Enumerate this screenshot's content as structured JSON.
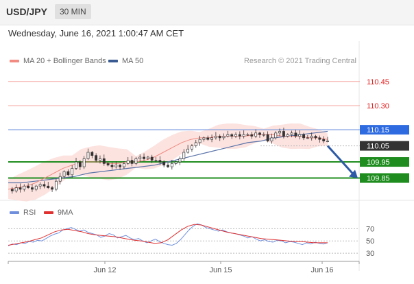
{
  "header": {
    "symbol": "USD/JPY",
    "timeframe": "30 MIN"
  },
  "datetime": "Wednesday, June 16, 2021 1:00:47 AM CET",
  "legend": {
    "main": [
      {
        "label": "MA 20 + Bollinger Bands",
        "color": "#f28b82"
      },
      {
        "label": "MA 50",
        "color": "#3a5a92"
      }
    ],
    "rsi": [
      {
        "label": "RSI",
        "color": "#6f8fdc"
      },
      {
        "label": "9MA",
        "color": "#e03030"
      }
    ]
  },
  "credit": "Research © 2021 Trading Central",
  "chart_data": [
    {
      "type": "candlestick",
      "ylim": [
        109.72,
        110.53
      ],
      "x_ticks": [
        "Jun 12",
        "Jun 15",
        "Jun 16"
      ],
      "price_levels": [
        {
          "value": 110.45,
          "label": "110.45",
          "kind": "resistance"
        },
        {
          "value": 110.3,
          "label": "110.30",
          "kind": "resistance"
        },
        {
          "value": 110.15,
          "label": "110.15",
          "kind": "pivot"
        },
        {
          "value": 110.05,
          "label": "110.05",
          "kind": "current"
        },
        {
          "value": 109.95,
          "label": "109.95",
          "kind": "target"
        },
        {
          "value": 109.85,
          "label": "109.85",
          "kind": "target"
        }
      ],
      "close_path": [
        109.78,
        109.77,
        109.79,
        109.78,
        109.8,
        109.79,
        109.78,
        109.8,
        109.81,
        109.8,
        109.79,
        109.78,
        109.83,
        109.86,
        109.89,
        109.87,
        109.91,
        109.95,
        109.92,
        109.97,
        110.01,
        109.99,
        109.96,
        109.97,
        109.94,
        109.93,
        109.92,
        109.93,
        109.92,
        109.94,
        109.96,
        109.94,
        109.97,
        109.98,
        109.97,
        109.98,
        109.96,
        109.96,
        109.95,
        109.93,
        109.92,
        109.94,
        109.95,
        109.97,
        110.01,
        110.03,
        110.05,
        110.07,
        110.09,
        110.1,
        110.09,
        110.1,
        110.11,
        110.1,
        110.11,
        110.12,
        110.11,
        110.12,
        110.11,
        110.12,
        110.12,
        110.11,
        110.13,
        110.12,
        110.12,
        110.08,
        110.1,
        110.13,
        110.14,
        110.11,
        110.12,
        110.13,
        110.11,
        110.12,
        110.1,
        110.1,
        110.11,
        110.1,
        110.09,
        110.08,
        110.08
      ],
      "ma20_path": [
        109.78,
        109.79,
        109.8,
        109.82,
        109.85,
        109.88,
        109.91,
        109.93,
        109.95,
        109.95,
        109.95,
        109.94,
        109.94,
        109.95,
        109.95,
        109.96,
        109.98,
        110.01,
        110.04,
        110.07,
        110.09,
        110.1,
        110.1,
        110.11,
        110.11,
        110.11,
        110.11,
        110.12,
        110.12,
        110.12,
        110.11,
        110.11,
        110.11,
        110.1,
        110.1,
        110.09
      ],
      "ma50_path": [
        109.82,
        109.82,
        109.83,
        109.84,
        109.85,
        109.86,
        109.88,
        109.89,
        109.9,
        109.91,
        109.92,
        109.93,
        109.95,
        109.97,
        109.99,
        110.01,
        110.03,
        110.05,
        110.07,
        110.08,
        110.1,
        110.11,
        110.12,
        110.13,
        110.14
      ],
      "forecast_arrow": {
        "from": 110.05,
        "to": 109.85
      }
    },
    {
      "type": "line",
      "ylim": [
        20,
        85
      ],
      "y_ticks": [
        {
          "value": 70,
          "label": "70"
        },
        {
          "value": 50,
          "label": "50"
        },
        {
          "value": 30,
          "label": "30"
        }
      ],
      "series": [
        {
          "name": "RSI",
          "values": [
            42,
            45,
            44,
            47,
            46,
            49,
            48,
            51,
            50,
            54,
            58,
            61,
            63,
            68,
            70,
            72,
            69,
            66,
            68,
            64,
            62,
            60,
            56,
            58,
            62,
            60,
            55,
            57,
            59,
            55,
            52,
            54,
            50,
            47,
            50,
            53,
            49,
            46,
            44,
            43,
            46,
            52,
            60,
            68,
            74,
            78,
            76,
            72,
            70,
            68,
            66,
            68,
            65,
            63,
            62,
            60,
            58,
            55,
            57,
            53,
            50,
            52,
            49,
            48,
            51,
            50,
            47,
            49,
            48,
            46,
            44,
            47,
            45,
            48,
            46,
            45,
            47
          ]
        },
        {
          "name": "9MA",
          "values": [
            43,
            45,
            47,
            49,
            52,
            55,
            60,
            65,
            68,
            69,
            67,
            65,
            62,
            60,
            59,
            58,
            57,
            55,
            53,
            51,
            50,
            48,
            46,
            47,
            52,
            60,
            68,
            74,
            77,
            76,
            73,
            70,
            67,
            64,
            62,
            60,
            58,
            56,
            54,
            53,
            52,
            51,
            50,
            49,
            49,
            48,
            47,
            47,
            47
          ]
        }
      ]
    }
  ]
}
